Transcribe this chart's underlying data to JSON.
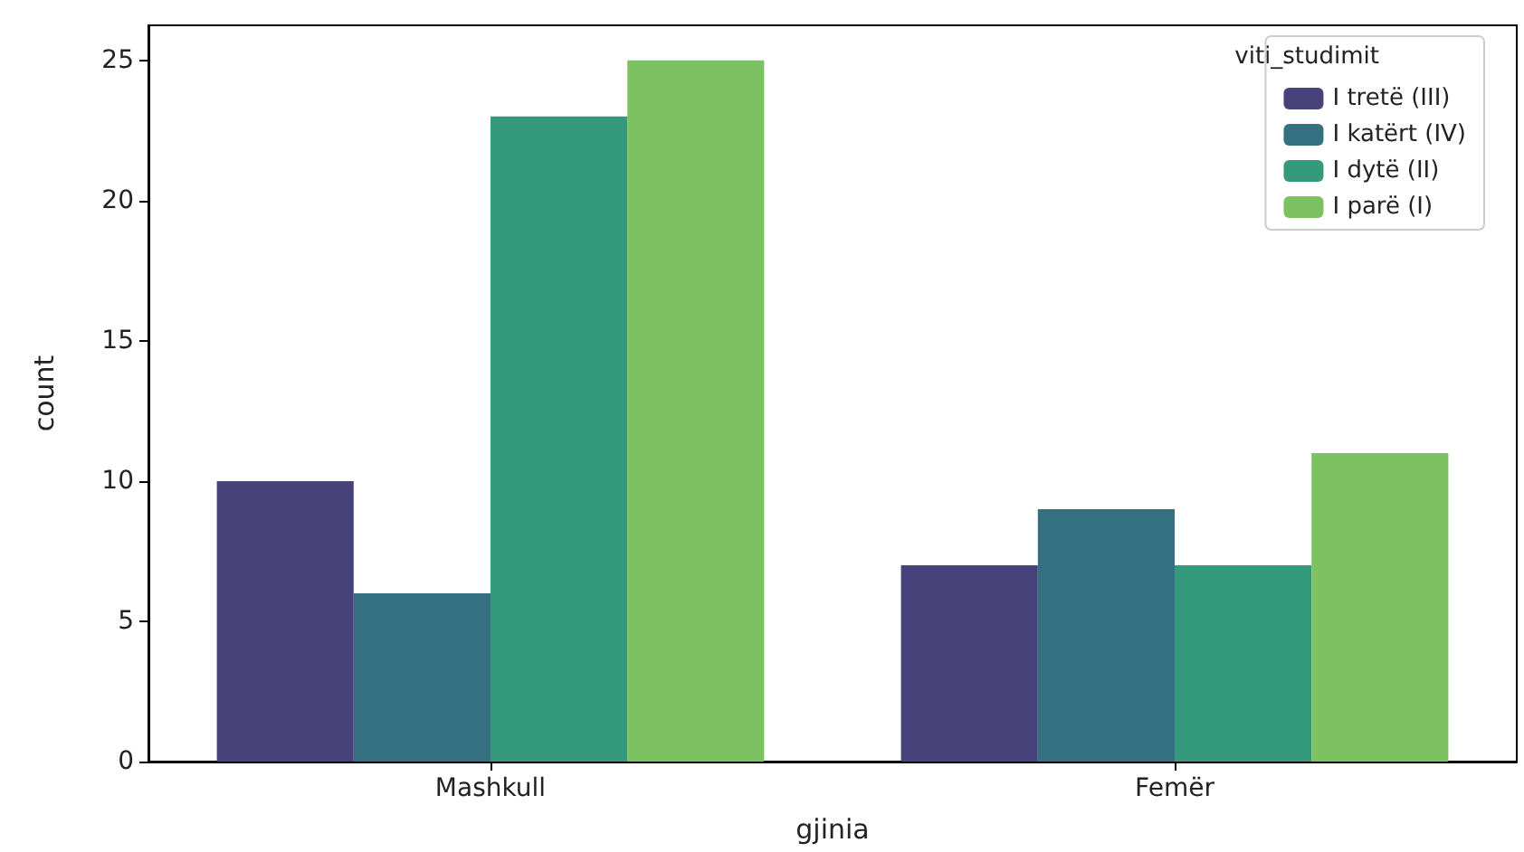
{
  "chart_data": {
    "type": "bar",
    "xlabel": "gjinia",
    "ylabel": "count",
    "legend_title": "viti_studimit",
    "categories": [
      "Mashkull",
      "Femër"
    ],
    "series": [
      {
        "name": "I tretë (III)",
        "color": "#48427a",
        "values": [
          10,
          7
        ]
      },
      {
        "name": "I katërt (IV)",
        "color": "#357080",
        "values": [
          6,
          9
        ]
      },
      {
        "name": "I dytë (II)",
        "color": "#35997b",
        "values": [
          23,
          7
        ]
      },
      {
        "name": "I parë (I)",
        "color": "#7cc162",
        "values": [
          25,
          11
        ]
      }
    ],
    "ylim": [
      0,
      26.25
    ],
    "yticks": [
      0,
      5,
      10,
      15,
      20,
      25
    ],
    "grid": false,
    "legend": "top right"
  }
}
